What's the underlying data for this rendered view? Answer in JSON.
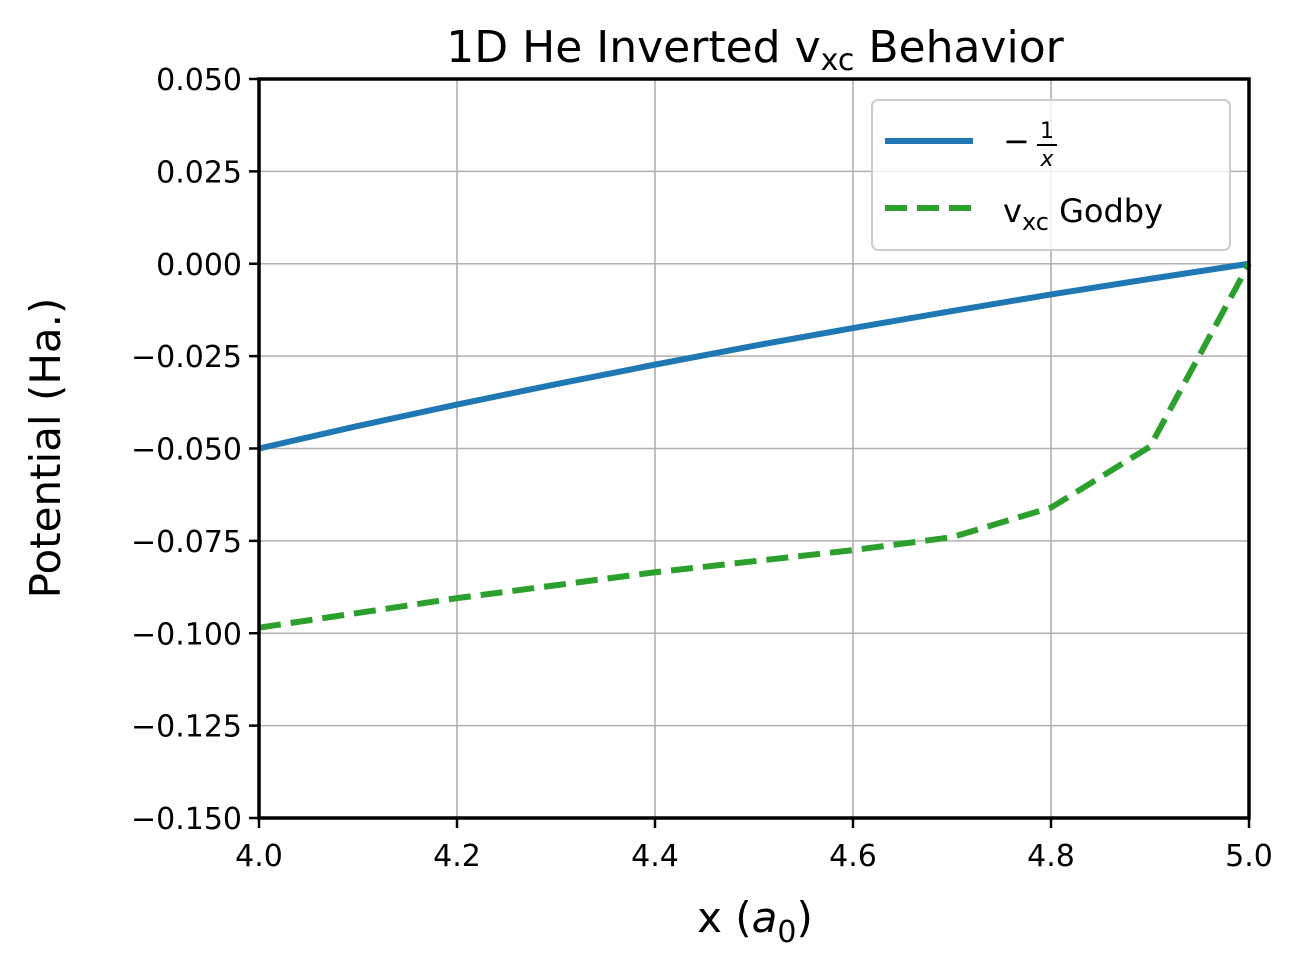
{
  "chart_data": {
    "type": "line",
    "title": {
      "main": "1D He Inverted v",
      "sub": "xc",
      "rest": " Behavior"
    },
    "xlabel": {
      "prefix": "x (",
      "var": "a",
      "sub": "0",
      "suffix": ")"
    },
    "ylabel": "Potential (Ha.)",
    "xlim": [
      4.0,
      5.0
    ],
    "ylim": [
      -0.15,
      0.05
    ],
    "xticks": [
      4.0,
      4.2,
      4.4,
      4.6,
      4.8,
      5.0
    ],
    "xtick_labels": [
      "4.0",
      "4.2",
      "4.4",
      "4.6",
      "4.8",
      "5.0"
    ],
    "yticks": [
      0.05,
      0.025,
      0.0,
      -0.025,
      -0.05,
      -0.075,
      -0.1,
      -0.125,
      -0.15
    ],
    "ytick_labels": [
      "0.050",
      "0.025",
      "0.000",
      "−0.025",
      "−0.050",
      "−0.075",
      "−0.100",
      "−0.125",
      "−0.150"
    ],
    "grid": true,
    "legend_position": "top-right",
    "series": [
      {
        "legend": {
          "minus": "−",
          "num": "1",
          "den": "x"
        },
        "color": "#1f77b4",
        "style": "solid",
        "x": [
          4.0,
          4.1,
          4.2,
          4.3,
          4.4,
          4.5,
          4.6,
          4.7,
          4.8,
          4.9,
          5.0
        ],
        "y": [
          -0.05,
          -0.0439,
          -0.0381,
          -0.0326,
          -0.0273,
          -0.0222,
          -0.0174,
          -0.0128,
          -0.0083,
          -0.0041,
          0.0
        ]
      },
      {
        "legend": {
          "main": "v",
          "sub": "xc",
          "rest": " Godby"
        },
        "color": "#2ca02c",
        "style": "dashed",
        "x": [
          4.0,
          4.1,
          4.2,
          4.3,
          4.4,
          4.5,
          4.6,
          4.7,
          4.8,
          4.9,
          5.0
        ],
        "y": [
          -0.0985,
          -0.0945,
          -0.0905,
          -0.087,
          -0.0835,
          -0.0805,
          -0.0775,
          -0.074,
          -0.066,
          -0.0495,
          0.0
        ]
      }
    ]
  }
}
